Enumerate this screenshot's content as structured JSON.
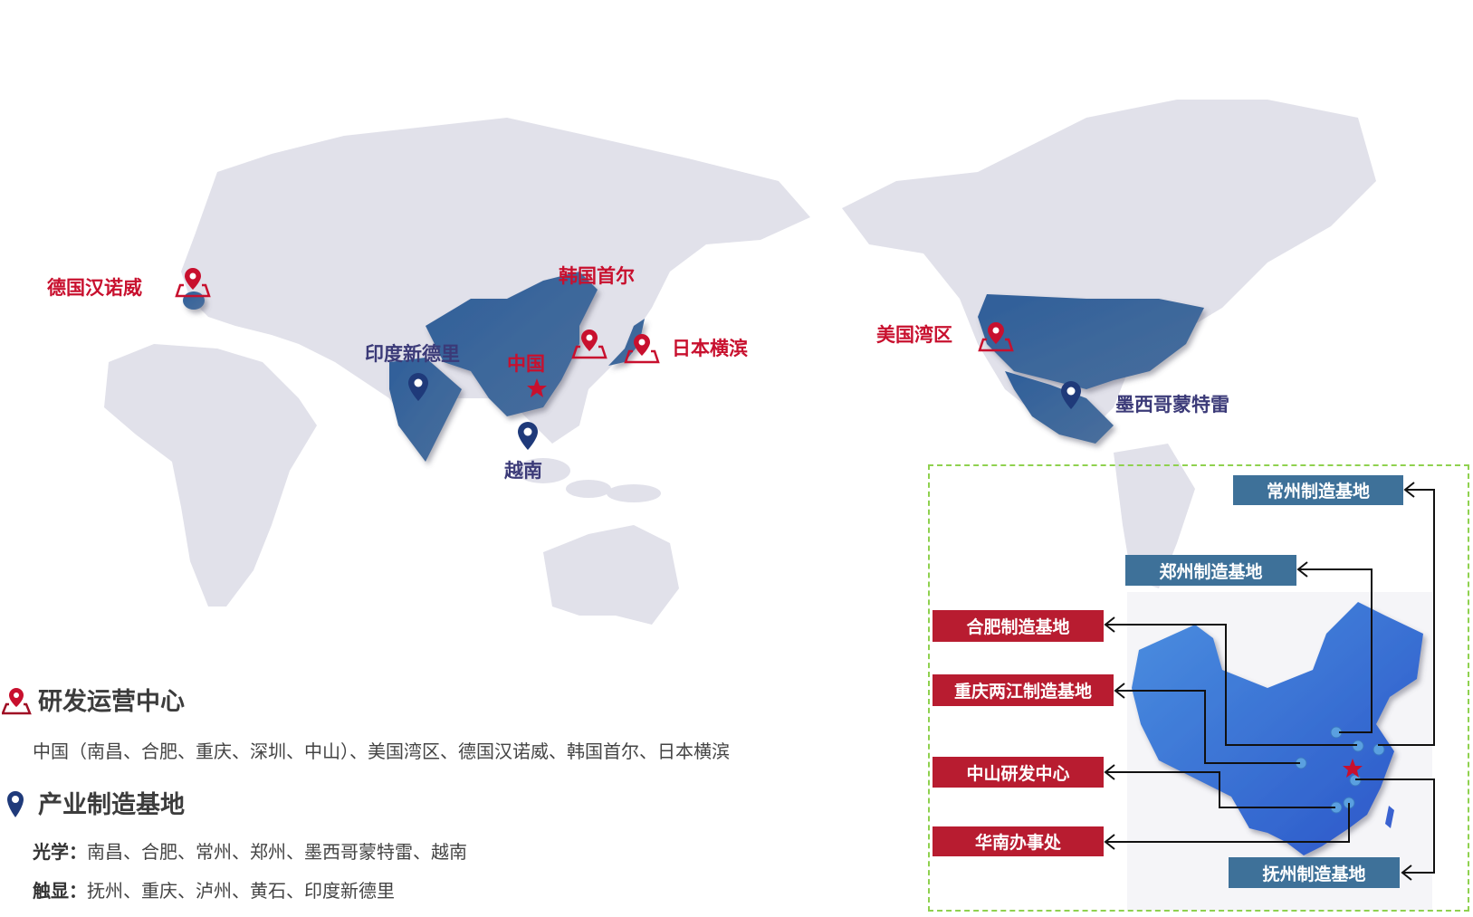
{
  "map_labels": {
    "germany": "德国汉诺威",
    "korea": "韩国首尔",
    "japan": "日本横滨",
    "china": "中国",
    "india": "印度新德里",
    "vietnam": "越南",
    "usa": "美国湾区",
    "mexico": "墨西哥蒙特雷"
  },
  "legend": {
    "rd": {
      "title": "研发运营中心",
      "text": "中国（南昌、合肥、重庆、深圳、中山）、美国湾区、德国汉诺威、韩国首尔、日本横滨",
      "icon": "map-marker-icon"
    },
    "mfg": {
      "title": "产业制造基地",
      "optics_label": "光学：",
      "optics_text": "南昌、合肥、常州、郑州、墨西哥蒙特雷、越南",
      "touch_label": "触显：",
      "touch_text": "抚州、重庆、泸州、黄石、印度新德里",
      "icon": "pin-icon"
    }
  },
  "inset": {
    "changzhou": "常州制造基地",
    "zhengzhou": "郑州制造基地",
    "hefei": "合肥制造基地",
    "chongqing": "重庆两江制造基地",
    "zhongshan": "中山研发中心",
    "huanan": "华南办事处",
    "fuzhou": "抚州制造基地"
  },
  "colors": {
    "red": "#c8102e",
    "navy": "#1f3a7a",
    "land": "#e1e1ea",
    "highlight": "#3a6598",
    "tag_blue": "#3e7199",
    "tag_red": "#b81c30",
    "inset_border": "#8fd14f"
  }
}
